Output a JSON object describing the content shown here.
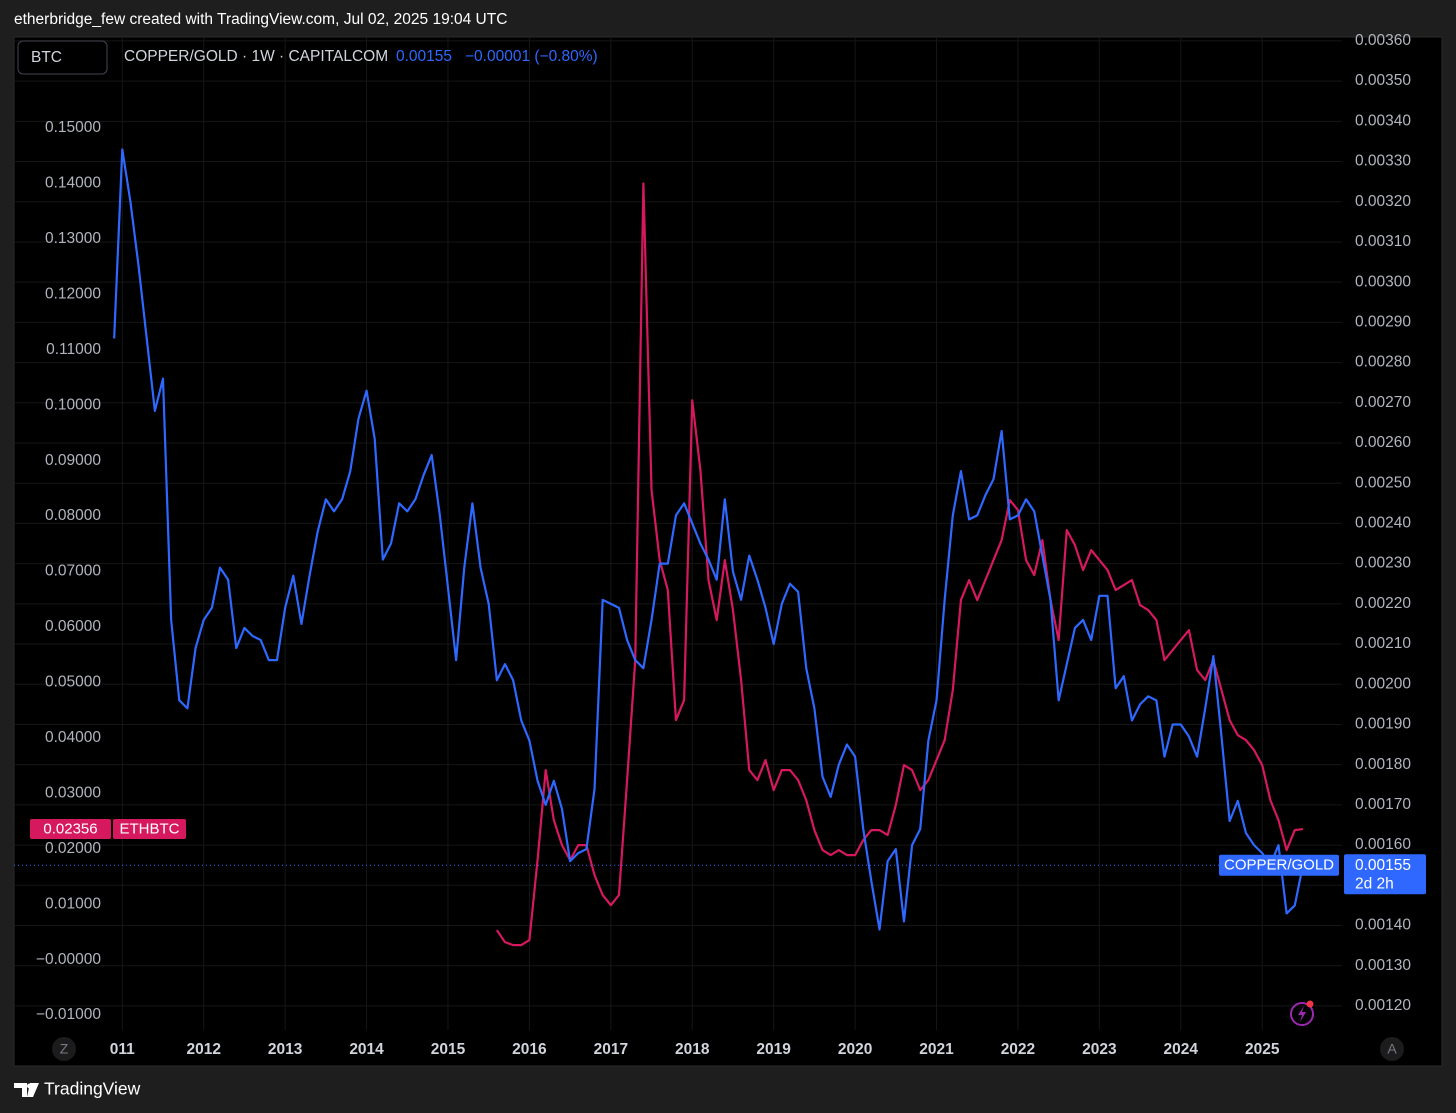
{
  "header": {
    "attribution": "etherbridge_few created with TradingView.com, Jul 02, 2025 19:04 UTC"
  },
  "toolbar": {
    "symbol": "BTC"
  },
  "legend": {
    "symbol": "COPPER/GOLD · 1W · CAPITALCOM",
    "change": "−0.00001 (−0.80%)"
  },
  "price_labels": {
    "countdown": "2d 2h"
  },
  "buttons": {
    "left": "Z",
    "right": "A"
  },
  "footer": {
    "brand": "TradingView"
  },
  "chart_data": {
    "type": "line",
    "x": [
      2010.9,
      2011,
      2011.1,
      2011.2,
      2011.3,
      2011.4,
      2011.5,
      2011.6,
      2011.7,
      2011.8,
      2011.9,
      2012,
      2012.1,
      2012.2,
      2012.3,
      2012.4,
      2012.5,
      2012.6,
      2012.7,
      2012.8,
      2012.9,
      2013,
      2013.1,
      2013.2,
      2013.3,
      2013.4,
      2013.5,
      2013.6,
      2013.7,
      2013.8,
      2013.9,
      2014,
      2014.1,
      2014.2,
      2014.3,
      2014.4,
      2014.5,
      2014.6,
      2014.7,
      2014.8,
      2014.9,
      2015,
      2015.1,
      2015.2,
      2015.3,
      2015.4,
      2015.5,
      2015.6,
      2015.7,
      2015.8,
      2015.9,
      2016,
      2016.1,
      2016.2,
      2016.3,
      2016.4,
      2016.5,
      2016.6,
      2016.7,
      2016.8,
      2016.9,
      2017,
      2017.1,
      2017.2,
      2017.3,
      2017.4,
      2017.5,
      2017.6,
      2017.7,
      2017.8,
      2017.9,
      2018,
      2018.1,
      2018.2,
      2018.3,
      2018.4,
      2018.5,
      2018.6,
      2018.7,
      2018.8,
      2018.9,
      2019,
      2019.1,
      2019.2,
      2019.3,
      2019.4,
      2019.5,
      2019.6,
      2019.7,
      2019.8,
      2019.9,
      2020,
      2020.1,
      2020.2,
      2020.3,
      2020.4,
      2020.5,
      2020.6,
      2020.7,
      2020.8,
      2020.9,
      2021,
      2021.1,
      2021.2,
      2021.3,
      2021.4,
      2021.5,
      2021.6,
      2021.7,
      2021.8,
      2021.9,
      2022,
      2022.1,
      2022.2,
      2022.3,
      2022.4,
      2022.5,
      2022.6,
      2022.7,
      2022.8,
      2022.9,
      2023,
      2023.1,
      2023.2,
      2023.3,
      2023.4,
      2023.5,
      2023.6,
      2023.7,
      2023.8,
      2023.9,
      2024,
      2024.1,
      2024.2,
      2024.3,
      2024.4,
      2024.5,
      2024.6,
      2024.7,
      2024.8,
      2024.9,
      2025,
      2025.1,
      2025.2,
      2025.3,
      2025.4,
      2025.5
    ],
    "xlim": [
      2009.67,
      2025.98
    ],
    "xticks": [
      {
        "value": 2011,
        "label": "011"
      },
      2012,
      2013,
      2014,
      2015,
      2016,
      2017,
      2018,
      2019,
      2020,
      2021,
      2022,
      2023,
      2024,
      2025
    ],
    "ylim": [
      -0.014,
      0.166
    ],
    "yticks": [
      {
        "value": -0.01,
        "label": "−0.01000"
      },
      {
        "value": 0,
        "label": "−0.00000"
      },
      {
        "value": 0.01,
        "label": "0.01000"
      },
      {
        "value": 0.02,
        "label": "0.02000"
      },
      {
        "value": 0.03,
        "label": "0.03000"
      },
      {
        "value": 0.04,
        "label": "0.04000"
      },
      {
        "value": 0.05,
        "label": "0.05000"
      },
      {
        "value": 0.06,
        "label": "0.06000"
      },
      {
        "value": 0.07,
        "label": "0.07000"
      },
      {
        "value": 0.08,
        "label": "0.08000"
      },
      {
        "value": 0.09,
        "label": "0.09000"
      },
      {
        "value": 0.1,
        "label": "0.10000"
      },
      {
        "value": 0.11,
        "label": "0.11000"
      },
      {
        "value": 0.12,
        "label": "0.12000"
      },
      {
        "value": 0.13,
        "label": "0.13000"
      },
      {
        "value": 0.14,
        "label": "0.14000"
      },
      {
        "value": 0.15,
        "label": "0.15000"
      }
    ],
    "y2lim": [
      0.001122,
      0.003604
    ],
    "y2ticks": [
      {
        "value": 0.0012,
        "label": "0.00120"
      },
      {
        "value": 0.0013,
        "label": "0.00130"
      },
      {
        "value": 0.0014,
        "label": "0.00140"
      },
      {
        "value": 0.0015,
        "label": "0.00150"
      },
      {
        "value": 0.0016,
        "label": "0.00160"
      },
      {
        "value": 0.0017,
        "label": "0.00170"
      },
      {
        "value": 0.0018,
        "label": "0.00180"
      },
      {
        "value": 0.0019,
        "label": "0.00190"
      },
      {
        "value": 0.002,
        "label": "0.00200"
      },
      {
        "value": 0.0021,
        "label": "0.00210"
      },
      {
        "value": 0.0022,
        "label": "0.00220"
      },
      {
        "value": 0.0023,
        "label": "0.00230"
      },
      {
        "value": 0.0024,
        "label": "0.00240"
      },
      {
        "value": 0.0025,
        "label": "0.00250"
      },
      {
        "value": 0.0026,
        "label": "0.00260"
      },
      {
        "value": 0.0027,
        "label": "0.00270"
      },
      {
        "value": 0.0028,
        "label": "0.00280"
      },
      {
        "value": 0.0029,
        "label": "0.00290"
      },
      {
        "value": 0.003,
        "label": "0.00300"
      },
      {
        "value": 0.0031,
        "label": "0.00310"
      },
      {
        "value": 0.0032,
        "label": "0.00320"
      },
      {
        "value": 0.0033,
        "label": "0.00330"
      },
      {
        "value": 0.0034,
        "label": "0.00340"
      },
      {
        "value": 0.0035,
        "label": "0.00350"
      },
      {
        "value": 0.0036,
        "label": "0.00360"
      }
    ],
    "grid": true,
    "series": [
      {
        "name": "ETHBTC",
        "color": "#d6195f",
        "values": [
          null,
          null,
          null,
          null,
          null,
          null,
          null,
          null,
          null,
          null,
          null,
          null,
          null,
          null,
          null,
          null,
          null,
          null,
          null,
          null,
          null,
          null,
          null,
          null,
          null,
          null,
          null,
          null,
          null,
          null,
          null,
          null,
          null,
          null,
          null,
          null,
          null,
          null,
          null,
          null,
          null,
          null,
          null,
          null,
          null,
          null,
          null,
          0.00533,
          0.00317,
          0.00263,
          0.00263,
          0.00353,
          0.01796,
          0.03419,
          0.02517,
          0.02066,
          0.01796,
          0.02066,
          0.02066,
          0.01525,
          0.01165,
          0.00984,
          0.01165,
          0.03239,
          0.05403,
          0.14,
          0.0847,
          0.07207,
          0.06666,
          0.04321,
          0.04682,
          0.1009,
          0.0883,
          0.06846,
          0.06125,
          0.07207,
          0.06305,
          0.05043,
          0.03419,
          0.03239,
          0.036,
          0.03058,
          0.03419,
          0.03419,
          0.03239,
          0.02878,
          0.02337,
          0.01976,
          0.01886,
          0.01976,
          0.01886,
          0.01886,
          0.02157,
          0.02337,
          0.02337,
          0.02247,
          0.02788,
          0.03509,
          0.03419,
          0.03058,
          0.03239,
          0.036,
          0.0396,
          0.04862,
          0.06486,
          0.06846,
          0.06486,
          0.06846,
          0.07207,
          0.07568,
          0.08289,
          0.08109,
          0.07207,
          0.06937,
          0.07568,
          0.06486,
          0.05764,
          0.07748,
          0.07478,
          0.07027,
          0.07387,
          0.07207,
          0.07027,
          0.06666,
          0.06756,
          0.06846,
          0.06395,
          0.06305,
          0.06125,
          0.05403,
          0.05584,
          0.05764,
          0.05944,
          0.05223,
          0.05043,
          0.05403,
          0.04862,
          0.04321,
          0.0405,
          0.0396,
          0.0378,
          0.03509,
          0.02878,
          0.02517,
          0.01976,
          0.02337,
          0.02356
        ]
      },
      {
        "name": "COPPER/GOLD",
        "color": "#2e68ff",
        "axis": "y2",
        "values": [
          0.00286,
          0.00333,
          0.0032,
          0.00304,
          0.00286,
          0.00268,
          0.00276,
          0.00216,
          0.00196,
          0.00194,
          0.00209,
          0.00216,
          0.00219,
          0.00229,
          0.00226,
          0.00209,
          0.00214,
          0.00212,
          0.00211,
          0.00206,
          0.00206,
          0.00219,
          0.00227,
          0.00215,
          0.00227,
          0.00238,
          0.00246,
          0.00243,
          0.00246,
          0.00253,
          0.00266,
          0.00273,
          0.00261,
          0.00231,
          0.00235,
          0.00245,
          0.00243,
          0.00246,
          0.00252,
          0.00257,
          0.00242,
          0.00224,
          0.00206,
          0.00229,
          0.00245,
          0.00229,
          0.0022,
          0.00201,
          0.00205,
          0.00201,
          0.00191,
          0.00186,
          0.00176,
          0.0017,
          0.00176,
          0.00169,
          0.00156,
          0.00158,
          0.00159,
          0.00174,
          0.00221,
          0.0022,
          0.00219,
          0.00211,
          0.00206,
          0.00204,
          0.00216,
          0.0023,
          0.0023,
          0.00242,
          0.00245,
          0.0024,
          0.00235,
          0.00231,
          0.00226,
          0.00246,
          0.00228,
          0.00221,
          0.00232,
          0.00226,
          0.00219,
          0.0021,
          0.0022,
          0.00225,
          0.00223,
          0.00204,
          0.00194,
          0.00177,
          0.00172,
          0.0018,
          0.00185,
          0.00182,
          0.00164,
          0.00151,
          0.00139,
          0.00156,
          0.00159,
          0.00141,
          0.0016,
          0.00164,
          0.00186,
          0.00196,
          0.00221,
          0.00242,
          0.00253,
          0.00241,
          0.00242,
          0.00247,
          0.00251,
          0.00263,
          0.00241,
          0.00242,
          0.00246,
          0.00243,
          0.00232,
          0.00221,
          0.00196,
          0.00205,
          0.00214,
          0.00216,
          0.00211,
          0.00222,
          0.00222,
          0.00199,
          0.00202,
          0.00191,
          0.00195,
          0.00197,
          0.00196,
          0.00182,
          0.0019,
          0.0019,
          0.00187,
          0.00182,
          0.00194,
          0.00207,
          0.00187,
          0.00166,
          0.00171,
          0.00163,
          0.0016,
          0.00158,
          0.00155,
          0.0016,
          0.00143,
          0.00145,
          0.00155
        ]
      }
    ]
  }
}
